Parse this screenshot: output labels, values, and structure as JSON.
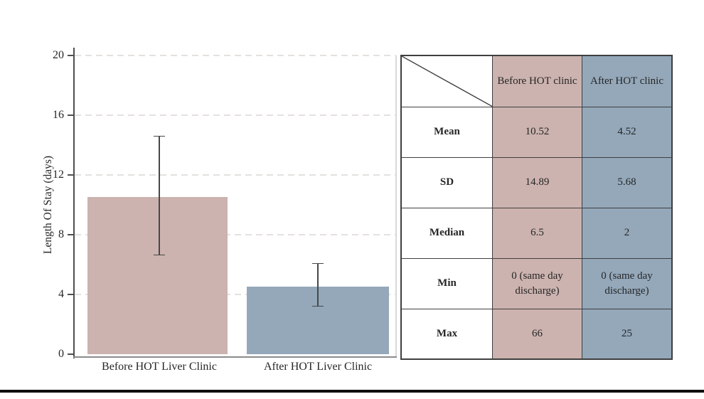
{
  "figure": {
    "background": "#ffffff"
  },
  "chart_data": {
    "type": "bar",
    "title": "",
    "xlabel": "",
    "ylabel": "Length Of Stay (days)",
    "ylim": [
      0,
      20
    ],
    "yticks": [
      0,
      4,
      8,
      12,
      16,
      20
    ],
    "grid": "horizontal dashed light-gray",
    "legend": "none",
    "categories": [
      "Before HOT Liver Clinic",
      "After HOT Liver Clinic"
    ],
    "values": [
      10.52,
      4.52
    ],
    "bar_colors": [
      "#ccb3af",
      "#94a8ba"
    ],
    "error_bars": [
      {
        "low": 6.7,
        "high": 14.6
      },
      {
        "low": 3.3,
        "high": 6.1
      }
    ]
  },
  "table": {
    "corner": "",
    "col_headers": [
      "Before HOT clinic",
      "After HOT clinic"
    ],
    "rows": [
      {
        "label": "Mean",
        "before": "10.52",
        "after": "4.52"
      },
      {
        "label": "SD",
        "before": "14.89",
        "after": "5.68"
      },
      {
        "label": "Median",
        "before": "6.5",
        "after": "2"
      },
      {
        "label": "Min",
        "before": "0 (same day discharge)",
        "after": "0 (same day discharge)"
      },
      {
        "label": "Max",
        "before": "66",
        "after": "25"
      }
    ],
    "colors": {
      "before": "#ccb3af",
      "after": "#94a8ba",
      "border": "#3f3f3f"
    }
  }
}
